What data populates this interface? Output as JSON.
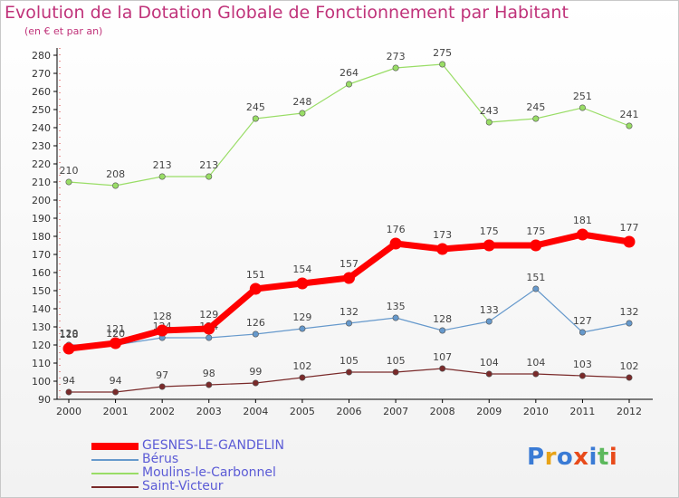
{
  "title": "Evolution de la Dotation Globale de Fonctionnement par Habitant",
  "subtitle": "(en € et par an)",
  "logo": "Proxiti",
  "chart_data": {
    "type": "line",
    "title": "Evolution de la Dotation Globale de Fonctionnement par Habitant",
    "subtitle": "(en € et par an)",
    "x": [
      "2000",
      "2001",
      "2002",
      "2003",
      "2004",
      "2005",
      "2006",
      "2007",
      "2008",
      "2009",
      "2010",
      "2011",
      "2012"
    ],
    "ylim": [
      90,
      280
    ],
    "yticks": [
      90,
      100,
      110,
      120,
      130,
      140,
      150,
      160,
      170,
      180,
      190,
      200,
      210,
      220,
      230,
      240,
      250,
      260,
      270,
      280
    ],
    "grid": false,
    "legend_position": "bottom-left",
    "series": [
      {
        "name": "GESNES-LE-GANDELIN",
        "color": "#ff0000",
        "emphasis": true,
        "values": [
          118,
          121,
          128,
          129,
          151,
          154,
          157,
          176,
          173,
          175,
          175,
          181,
          177
        ]
      },
      {
        "name": "Bérus",
        "color": "#6699cc",
        "emphasis": false,
        "values": [
          120,
          120,
          124,
          124,
          126,
          129,
          132,
          135,
          128,
          133,
          151,
          127,
          132
        ]
      },
      {
        "name": "Moulins-le-Carbonnel",
        "color": "#99dd66",
        "emphasis": false,
        "values": [
          210,
          208,
          213,
          213,
          245,
          248,
          264,
          273,
          275,
          243,
          245,
          251,
          241
        ]
      },
      {
        "name": "Saint-Victeur",
        "color": "#7a2a2a",
        "emphasis": false,
        "values": [
          94,
          94,
          97,
          98,
          99,
          102,
          105,
          105,
          107,
          104,
          104,
          103,
          102
        ]
      }
    ]
  }
}
